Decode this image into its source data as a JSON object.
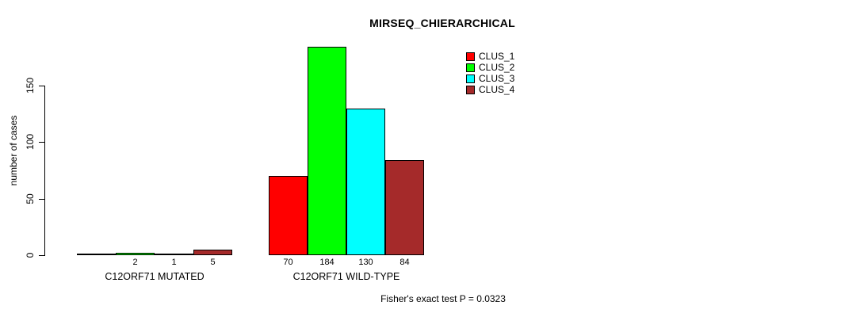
{
  "chart_data": {
    "type": "bar",
    "title": "MIRSEQ_CHIERARCHICAL",
    "ylabel": "number of cases",
    "xlabel": "",
    "categories": [
      "C12ORF71 MUTATED",
      "C12ORF71 WILD-TYPE"
    ],
    "series": [
      {
        "name": "CLUS_1",
        "color": "#FF0000",
        "values": [
          0,
          70
        ]
      },
      {
        "name": "CLUS_2",
        "color": "#00FF00",
        "values": [
          2,
          184
        ]
      },
      {
        "name": "CLUS_3",
        "color": "#00FFFF",
        "values": [
          1,
          130
        ]
      },
      {
        "name": "CLUS_4",
        "color": "#A52A2A",
        "values": [
          5,
          84
        ]
      }
    ],
    "bar_labels": [
      [
        "",
        "2",
        "1",
        "5"
      ],
      [
        "70",
        "184",
        "130",
        "84"
      ]
    ],
    "yticks": [
      0,
      50,
      100,
      150
    ],
    "ylim": [
      0,
      190
    ],
    "grid": false,
    "legend_position": "top-right",
    "legend_entries": [
      "CLUS_1",
      "CLUS_2",
      "CLUS_3",
      "CLUS_4"
    ],
    "annotation": "Fisher's exact test P = 0.0323"
  }
}
